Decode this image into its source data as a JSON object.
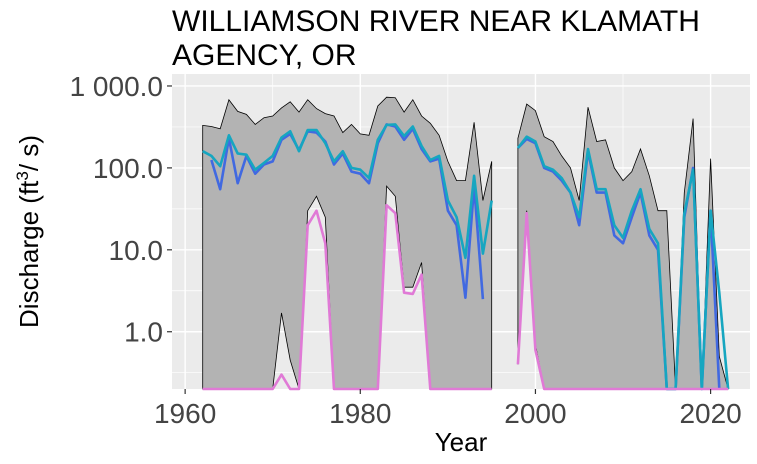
{
  "chart_data": {
    "type": "area",
    "title_lines": [
      "WILLIAMSON RIVER NEAR KLAMATH",
      "AGENCY, OR"
    ],
    "xlabel": "Year",
    "ylabel": "Discharge (ft³/s)",
    "y_scale": "log",
    "xlim": [
      1958.5,
      2024.5
    ],
    "ylim": [
      0.2,
      1400
    ],
    "x_ticks": [
      1960,
      1980,
      2000,
      2020
    ],
    "x_tick_labels": [
      "1960",
      "1980",
      "2000",
      "2020"
    ],
    "y_ticks": [
      1,
      10,
      100,
      1000
    ],
    "y_tick_labels": [
      "1.0",
      "10.0",
      "100.0",
      "1 000.0"
    ],
    "grid": true,
    "legend": "none",
    "colors": {
      "panel_bg": "#ebebeb",
      "grid": "#ffffff",
      "range_fill": "#b3b3b3",
      "range_outline": "#000000",
      "minimum": "#e07ad6",
      "median": "#4169e1",
      "mean": "#16a6c0"
    },
    "range_band": [
      {
        "x": [
          1962,
          1963,
          1964,
          1965,
          1966,
          1967,
          1968,
          1969,
          1970,
          1971,
          1972,
          1973,
          1974,
          1975,
          1976,
          1977,
          1978,
          1979,
          1980,
          1981,
          1982,
          1983,
          1984,
          1985,
          1986,
          1987,
          1988,
          1989,
          1990,
          1991,
          1992,
          1993,
          1994,
          1995
        ],
        "max": [
          330,
          320,
          300,
          680,
          490,
          450,
          340,
          410,
          430,
          540,
          640,
          480,
          680,
          530,
          460,
          430,
          270,
          340,
          260,
          250,
          570,
          730,
          720,
          480,
          680,
          430,
          350,
          250,
          120,
          70,
          70,
          360,
          40,
          120
        ],
        "min": [
          0.2,
          0.2,
          0.2,
          0.2,
          0.2,
          0.2,
          0.2,
          0.2,
          0.2,
          1.7,
          0.45,
          0.2,
          30,
          45,
          25,
          0.2,
          0.2,
          0.2,
          0.2,
          0.2,
          0.2,
          60,
          45,
          3.5,
          3.5,
          7,
          0.2,
          0.2,
          0.2,
          0.2,
          0.2,
          0.2,
          0.2,
          0.2
        ]
      },
      {
        "x": [
          1998,
          1999,
          2000,
          2001,
          2002,
          2003,
          2004,
          2005,
          2006,
          2007,
          2008,
          2009,
          2010,
          2011,
          2012,
          2013,
          2014,
          2015,
          2016,
          2017,
          2018,
          2019,
          2020,
          2021,
          2022
        ],
        "max": [
          230,
          600,
          500,
          240,
          210,
          140,
          100,
          40,
          550,
          210,
          220,
          100,
          70,
          90,
          170,
          80,
          30,
          30,
          0.2,
          50,
          400,
          0.2,
          130,
          0.5,
          0.2
        ],
        "min": [
          0.4,
          30,
          0.7,
          0.2,
          0.2,
          0.2,
          0.2,
          0.2,
          0.2,
          0.2,
          0.2,
          0.2,
          0.2,
          0.2,
          0.2,
          0.2,
          0.2,
          0.2,
          0.2,
          0.2,
          0.2,
          0.2,
          0.2,
          0.2,
          0.2
        ]
      }
    ],
    "series": [
      {
        "key": "median",
        "segments": [
          {
            "x": [
              1963,
              1964,
              1965,
              1966,
              1967,
              1968,
              1969,
              1970,
              1971,
              1972,
              1973,
              1974,
              1975,
              1976,
              1977,
              1978,
              1979,
              1980,
              1981,
              1982,
              1983,
              1984,
              1985,
              1986,
              1987,
              1988,
              1989,
              1990,
              1991,
              1992,
              1993,
              1994
            ],
            "y": [
              125,
              55,
              230,
              65,
              140,
              85,
              110,
              120,
              220,
              260,
              165,
              280,
              270,
              210,
              110,
              150,
              90,
              85,
              65,
              200,
              340,
              320,
              220,
              300,
              170,
              120,
              130,
              30,
              20,
              2.6,
              60,
              2.5
            ]
          },
          {
            "x": [
              1998,
              1999,
              2000,
              2001,
              2002,
              2003,
              2004,
              2005,
              2006,
              2007,
              2008,
              2009,
              2010,
              2011,
              2012,
              2013,
              2014,
              2015,
              2016,
              2017,
              2018,
              2019,
              2020,
              2021
            ],
            "y": [
              175,
              225,
              200,
              100,
              90,
              70,
              50,
              20,
              160,
              50,
              50,
              15,
              12,
              25,
              50,
              15,
              10,
              0.2,
              0.2,
              25,
              100,
              0.2,
              30,
              0.2
            ]
          }
        ]
      },
      {
        "key": "mean",
        "segments": [
          {
            "x": [
              1962,
              1963,
              1964,
              1965,
              1966,
              1967,
              1968,
              1969,
              1970,
              1971,
              1972,
              1973,
              1974,
              1975,
              1976,
              1977,
              1978,
              1979,
              1980,
              1981,
              1982,
              1983,
              1984,
              1985,
              1986,
              1987,
              1988,
              1989,
              1990,
              1991,
              1992,
              1993,
              1994,
              1995
            ],
            "y": [
              160,
              140,
              105,
              250,
              150,
              145,
              95,
              115,
              140,
              235,
              280,
              160,
              290,
              290,
              200,
              120,
              160,
              100,
              95,
              75,
              220,
              335,
              340,
              245,
              320,
              185,
              125,
              140,
              40,
              25,
              8,
              80,
              9,
              40
            ]
          },
          {
            "x": [
              1998,
              1999,
              2000,
              2001,
              2002,
              2003,
              2004,
              2005,
              2006,
              2007,
              2008,
              2009,
              2010,
              2011,
              2012,
              2013,
              2014,
              2015,
              2016,
              2017,
              2018,
              2019,
              2020,
              2021,
              2022
            ],
            "y": [
              175,
              240,
              210,
              105,
              95,
              75,
              50,
              25,
              170,
              55,
              55,
              20,
              14,
              30,
              55,
              18,
              12,
              0.2,
              0.2,
              28,
              95,
              0.2,
              30,
              3,
              0.2
            ]
          }
        ]
      },
      {
        "key": "minimum",
        "segments": [
          {
            "x": [
              1962,
              1963,
              1964,
              1965,
              1966,
              1967,
              1968,
              1969,
              1970,
              1971,
              1972,
              1973,
              1974,
              1975,
              1976,
              1977,
              1978,
              1979,
              1980,
              1981,
              1982,
              1983,
              1984,
              1985,
              1986,
              1987,
              1988,
              1989,
              1990,
              1991,
              1992,
              1993,
              1994,
              1995
            ],
            "y": [
              0.2,
              0.2,
              0.2,
              0.2,
              0.2,
              0.2,
              0.2,
              0.2,
              0.2,
              0.3,
              0.2,
              0.2,
              20,
              30,
              12,
              0.2,
              0.2,
              0.2,
              0.2,
              0.2,
              0.2,
              35,
              28,
              3,
              2.9,
              5,
              0.2,
              0.2,
              0.2,
              0.2,
              0.2,
              0.2,
              0.2,
              0.2
            ]
          },
          {
            "x": [
              1998,
              1999,
              2000,
              2001,
              2002,
              2003,
              2004,
              2005,
              2006,
              2007,
              2008,
              2009,
              2010,
              2011,
              2012,
              2013,
              2014,
              2015,
              2016,
              2017,
              2018,
              2019,
              2020,
              2021,
              2022
            ],
            "y": [
              0.4,
              28,
              0.6,
              0.2,
              0.2,
              0.2,
              0.2,
              0.2,
              0.2,
              0.2,
              0.2,
              0.2,
              0.2,
              0.2,
              0.2,
              0.2,
              0.2,
              0.2,
              0.2,
              0.2,
              0.2,
              0.2,
              0.2,
              0.2,
              0.2
            ]
          }
        ]
      }
    ]
  }
}
